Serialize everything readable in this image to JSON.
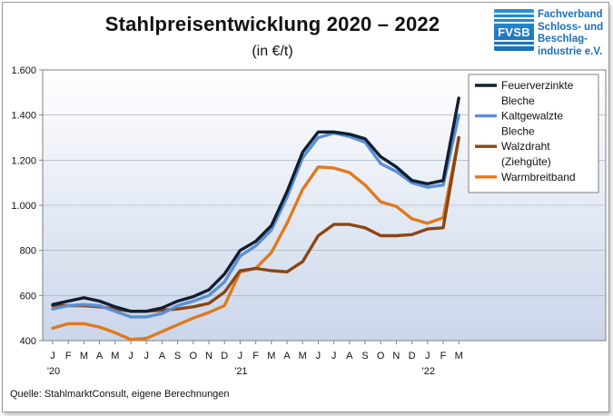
{
  "header": {
    "title": "Stahlpreisentwicklung  2020 – 2022",
    "subtitle": "(in €/t)"
  },
  "logo": {
    "abbr": "FVSB",
    "lines": [
      "Fachverband",
      "Schloss- und",
      "Beschlag-",
      "industrie e.V."
    ],
    "color": "#1a6fb8"
  },
  "source": "Quelle: StahlmarktConsult, eigene Berechnungen",
  "chart_data": {
    "type": "line",
    "title": "Stahlpreisentwicklung  2020 – 2022",
    "subtitle": "(in €/t)",
    "ylim": [
      400,
      1600
    ],
    "yticks": [
      400,
      600,
      800,
      1000,
      1200,
      1400,
      1600
    ],
    "ytick_labels": [
      "400",
      "600",
      "800",
      "1.000",
      "1.200",
      "1.400",
      "1.600"
    ],
    "x": [
      "J",
      "F",
      "M",
      "A",
      "M",
      "J",
      "J",
      "A",
      "S",
      "O",
      "N",
      "D",
      "J",
      "F",
      "M",
      "A",
      "M",
      "J",
      "J",
      "A",
      "S",
      "O",
      "N",
      "D",
      "J",
      "F",
      "M"
    ],
    "year_labels": [
      {
        "index": 0,
        "label": "'20"
      },
      {
        "index": 12,
        "label": "'21"
      },
      {
        "index": 24,
        "label": "'22"
      }
    ],
    "grid": true,
    "legend_position": "top-right",
    "series": [
      {
        "name": "Feuerverzinkte Bleche",
        "legend_lines": [
          "Feuerverzinkte",
          "Bleche"
        ],
        "color": "#0f1f33",
        "values": [
          560,
          575,
          590,
          575,
          550,
          530,
          530,
          545,
          575,
          595,
          625,
          695,
          800,
          840,
          910,
          1060,
          1235,
          1325,
          1325,
          1315,
          1295,
          1215,
          1170,
          1110,
          1095,
          1110,
          1475
        ]
      },
      {
        "name": "Kaltgewalzte Bleche",
        "legend_lines": [
          "Kaltgewalzte",
          "Bleche"
        ],
        "color": "#5b8fd4",
        "values": [
          540,
          555,
          560,
          555,
          530,
          505,
          505,
          520,
          555,
          575,
          600,
          660,
          775,
          820,
          890,
          1035,
          1210,
          1300,
          1320,
          1305,
          1280,
          1185,
          1150,
          1100,
          1080,
          1090,
          1400
        ]
      },
      {
        "name": "Walzdraht (Ziehgüte)",
        "legend_lines": [
          "Walzdraht",
          "(Ziehgüte)"
        ],
        "color": "#8b4513",
        "values": [
          555,
          555,
          555,
          550,
          540,
          530,
          530,
          535,
          540,
          550,
          565,
          615,
          710,
          720,
          710,
          705,
          750,
          865,
          915,
          915,
          900,
          865,
          865,
          870,
          895,
          900,
          1300
        ]
      },
      {
        "name": "Warmbreitband",
        "legend_lines": [
          "Warmbreitband"
        ],
        "color": "#e07a1f",
        "values": [
          455,
          475,
          475,
          460,
          435,
          405,
          410,
          440,
          470,
          500,
          525,
          555,
          705,
          720,
          790,
          920,
          1070,
          1170,
          1165,
          1145,
          1090,
          1015,
          995,
          940,
          920,
          945,
          1300
        ]
      }
    ]
  }
}
